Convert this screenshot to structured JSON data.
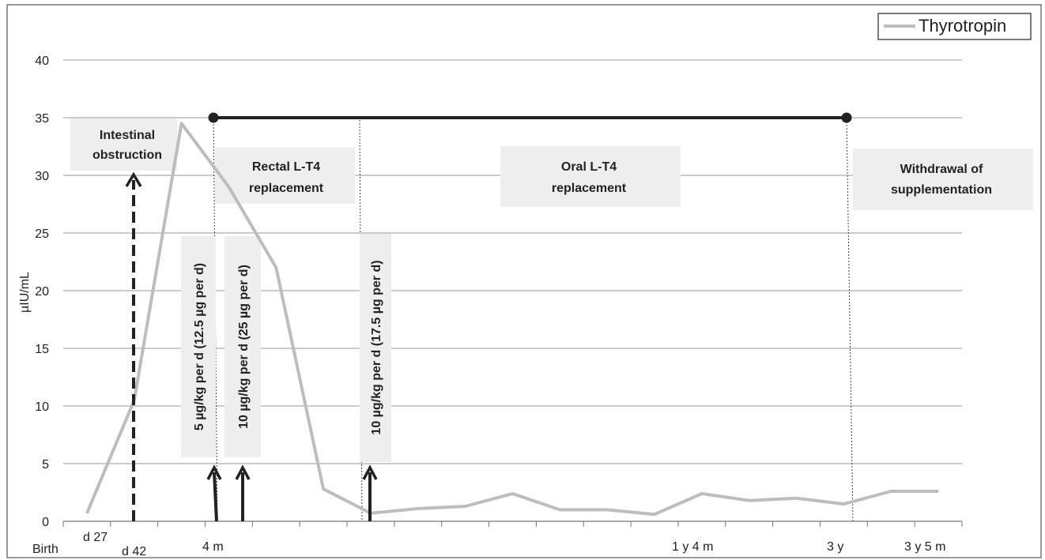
{
  "chart_data": {
    "type": "line",
    "xlabel": "",
    "ylabel": "µIU/mL",
    "ylim": [
      0,
      40
    ],
    "yticks": [
      0,
      5,
      10,
      15,
      20,
      25,
      30,
      35,
      40
    ],
    "grid": true,
    "legend": {
      "position": "top-right",
      "entries": [
        "Thyrotropin"
      ]
    },
    "x_tick_labels": [
      "Birth",
      "d 27",
      "d 42",
      "4 m",
      "1 y 4 m",
      "3 y",
      "3 y 5 m"
    ],
    "series": [
      {
        "name": "Thyrotropin",
        "color": "#bdbdbd",
        "values": [
          0.7,
          10.5,
          34.5,
          29.0,
          22.0,
          2.8,
          0.7,
          1.1,
          1.3,
          2.4,
          1.0,
          1.0,
          0.6,
          2.4,
          1.8,
          2.0,
          1.5,
          2.6,
          2.6
        ]
      }
    ],
    "treatment_bar": {
      "y": 35,
      "color": "#222222"
    },
    "annotations": {
      "intestinal_obstruction": "Intestinal obstruction",
      "rectal": "Rectal L-T4 replacement",
      "oral": "Oral L-T4 replacement",
      "withdrawal": "Withdrawal of supplementation",
      "dose1": "5 µg/kg per d (12.5 µg per d)",
      "dose2": "10 µg/kg per d (25 µg per d)",
      "dose3": "10 µg/kg per d (17.5 µg per d)"
    }
  }
}
